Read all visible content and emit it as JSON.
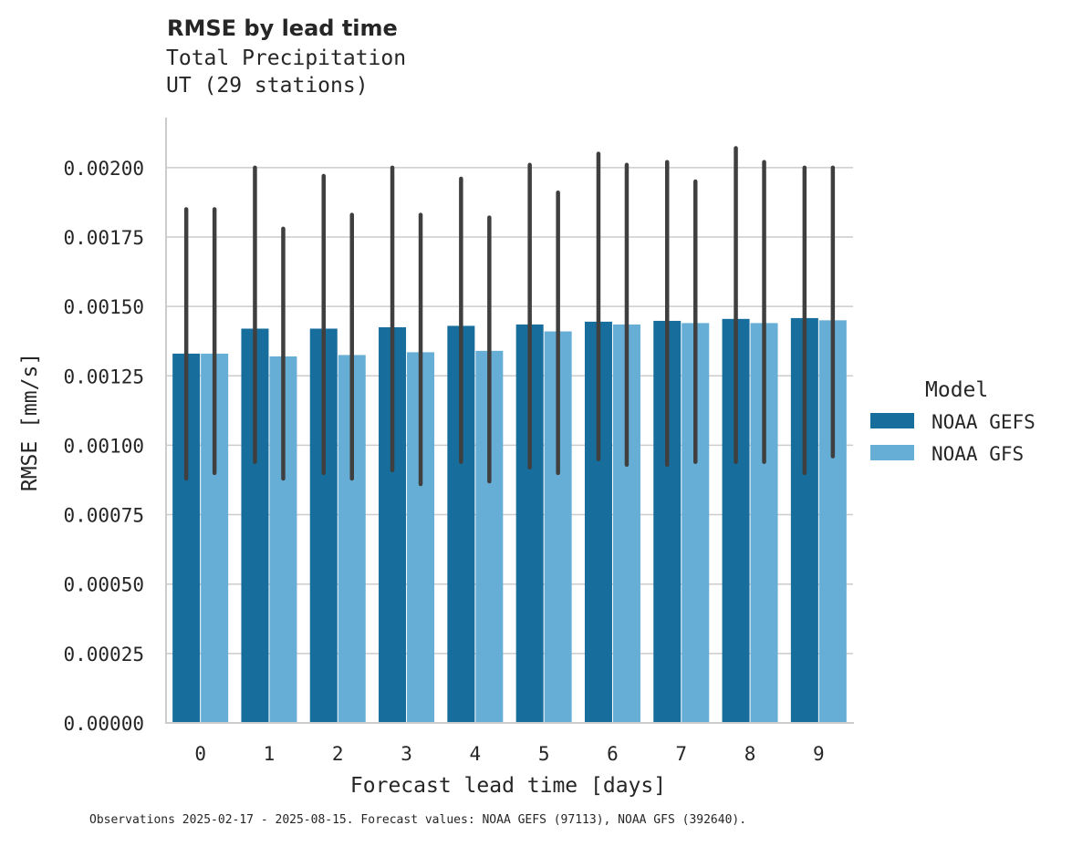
{
  "header": {
    "title": "RMSE by lead time",
    "subtitle_line1": "Total Precipitation",
    "subtitle_line2": "UT (29 stations)"
  },
  "footnote": "Observations 2025-02-17 - 2025-08-15. Forecast values: NOAA GEFS (97113), NOAA GFS (392640).",
  "colors": {
    "NOAA GEFS": "#176d9c",
    "NOAA GFS": "#67aed7",
    "errorbar": "#3f3f3f",
    "grid": "#cccccc",
    "axis": "#cccccc"
  },
  "chart_data": {
    "type": "bar",
    "xlabel": "Forecast lead time [days]",
    "ylabel": "RMSE [mm/s]",
    "ylim": [
      0,
      0.00218
    ],
    "yticks": [
      0,
      0.00025,
      0.0005,
      0.00075,
      0.001,
      0.00125,
      0.0015,
      0.00175,
      0.002
    ],
    "ytick_labels": [
      "0.00000",
      "0.00025",
      "0.00050",
      "0.00075",
      "0.00100",
      "0.00125",
      "0.00150",
      "0.00175",
      "0.00200"
    ],
    "categories": [
      "0",
      "1",
      "2",
      "3",
      "4",
      "5",
      "6",
      "7",
      "8",
      "9"
    ],
    "grid": "horizontal",
    "legend": {
      "title": "Model",
      "placement": "right"
    },
    "series": [
      {
        "name": "NOAA GEFS",
        "values": [
          0.00133,
          0.00142,
          0.00142,
          0.001425,
          0.00143,
          0.001435,
          0.001445,
          0.001448,
          0.001455,
          0.001458
        ],
        "err_low": [
          0.00088,
          0.00094,
          0.0009,
          0.00091,
          0.00094,
          0.00092,
          0.00095,
          0.00093,
          0.00094,
          0.0009
        ],
        "err_high": [
          0.00185,
          0.002,
          0.00197,
          0.002,
          0.00196,
          0.00201,
          0.00205,
          0.00202,
          0.00207,
          0.002
        ]
      },
      {
        "name": "NOAA GFS",
        "values": [
          0.00133,
          0.00132,
          0.001325,
          0.001335,
          0.00134,
          0.00141,
          0.001435,
          0.00144,
          0.00144,
          0.00145
        ],
        "err_low": [
          0.0009,
          0.00088,
          0.00088,
          0.00086,
          0.00087,
          0.0009,
          0.00093,
          0.00094,
          0.00094,
          0.00096
        ],
        "err_high": [
          0.00185,
          0.00178,
          0.00183,
          0.00183,
          0.00182,
          0.00191,
          0.00201,
          0.00195,
          0.00202,
          0.002
        ]
      }
    ]
  }
}
